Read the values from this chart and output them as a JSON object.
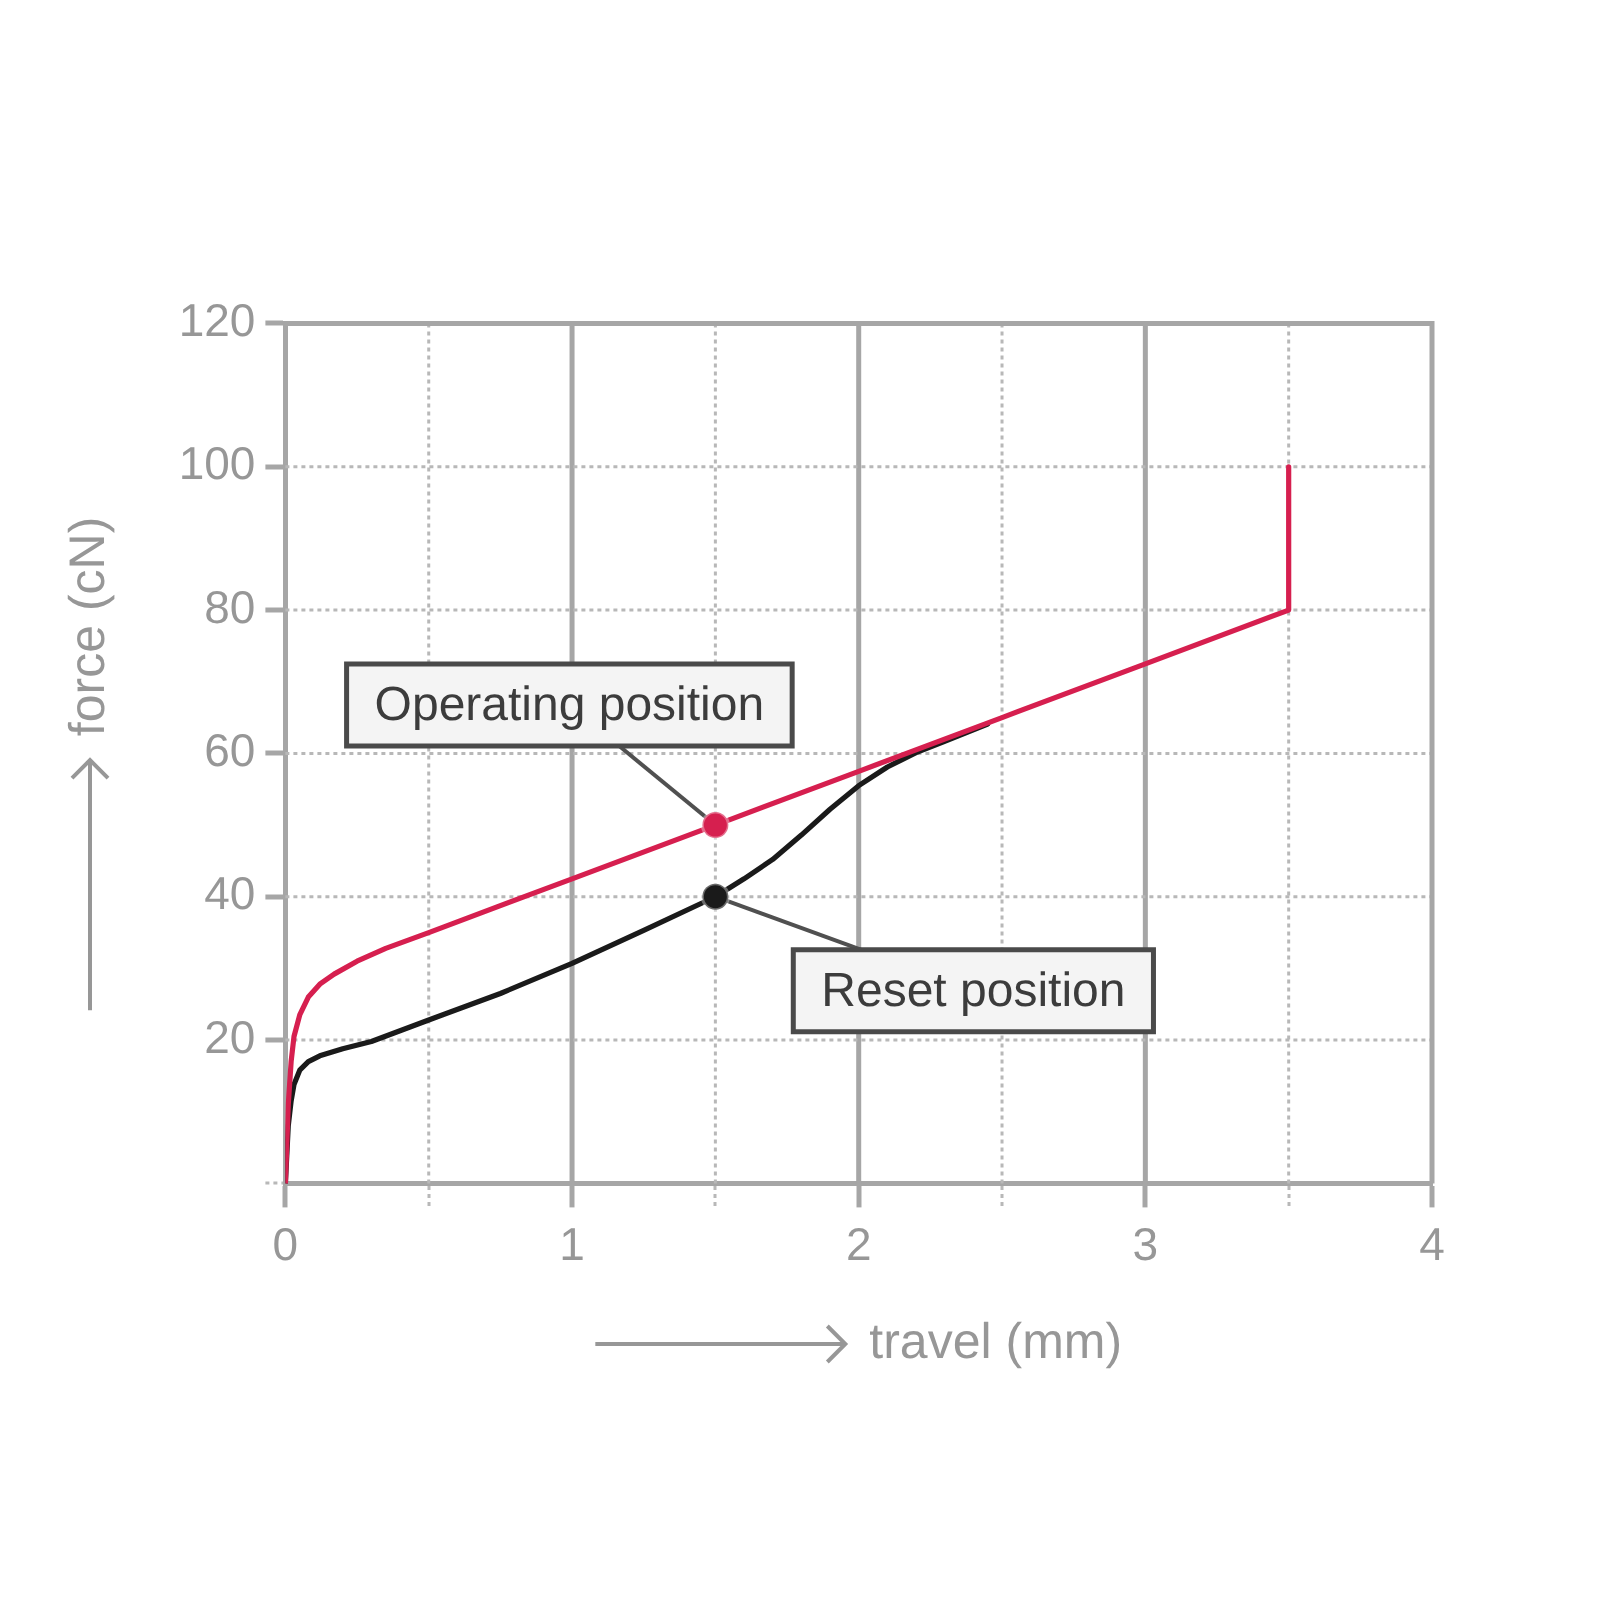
{
  "chart_data": {
    "type": "line",
    "xlabel": "travel (mm)",
    "ylabel": "force (cN)",
    "xlim": [
      0,
      4
    ],
    "xticks": [
      0,
      {
        "value": 0.5,
        "label": null
      },
      1,
      {
        "value": 1.5,
        "label": null
      },
      2,
      {
        "value": 2.5,
        "label": null
      },
      3,
      {
        "value": 3.5,
        "label": null
      },
      4
    ],
    "ylim": [
      0,
      120
    ],
    "yticks": [
      {
        "value": 0,
        "label": null
      },
      20,
      40,
      60,
      80,
      100,
      120
    ],
    "grid": true,
    "series": [
      {
        "color": "#1a1a1a",
        "x": [
          0,
          0.01,
          0.02,
          0.03,
          0.05,
          0.08,
          0.12,
          0.2,
          0.3,
          0.5,
          0.75,
          1,
          1.25,
          1.5,
          1.6,
          1.7,
          1.8,
          1.9,
          2,
          2.1,
          2.2,
          2.3,
          2.45
        ],
        "values": [
          0,
          8,
          11.5,
          13.8,
          15.8,
          17,
          17.8,
          18.8,
          19.8,
          22.8,
          26.5,
          30.7,
          35.3,
          40,
          42.5,
          45.2,
          48.6,
          52.2,
          55.5,
          58.1,
          60.1,
          61.7,
          64.1
        ]
      },
      {
        "color": "#d61f4f",
        "x": [
          0,
          0.01,
          0.02,
          0.03,
          0.05,
          0.08,
          0.12,
          0.17,
          0.25,
          0.35,
          0.5,
          1,
          1.5,
          2,
          2.5,
          3,
          3.5,
          3.5
        ],
        "values": [
          0,
          11,
          17,
          20.5,
          23.5,
          26,
          27.8,
          29.2,
          31,
          32.8,
          35,
          42.5,
          50,
          57.5,
          65,
          72.5,
          80,
          100
        ]
      },
      {
        "type": "scatter",
        "marker": "circle",
        "x": [
          1.5,
          1.5
        ],
        "values": [
          50,
          40
        ],
        "colors": [
          "#d61f4f",
          "#1a1a1a"
        ]
      }
    ],
    "annotations": [
      {
        "text": "Operating position",
        "x": 1.5,
        "y": 50
      },
      {
        "text": "Reset position",
        "x": 1.5,
        "y": 40
      }
    ]
  }
}
